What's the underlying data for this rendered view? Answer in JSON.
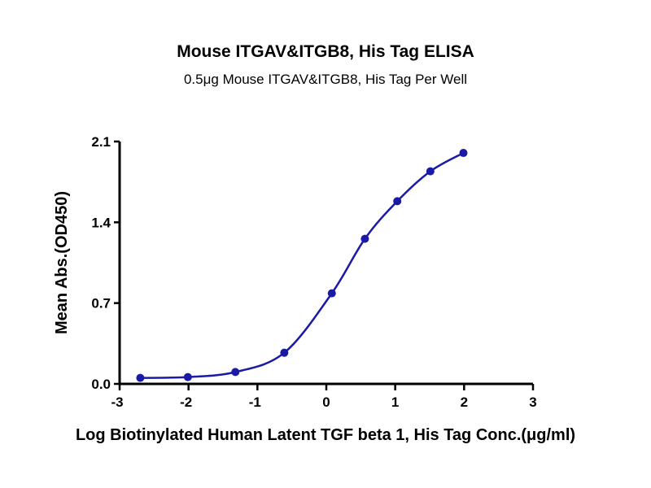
{
  "chart_data": {
    "type": "scatter",
    "title": "Mouse ITGAV&ITGB8, His Tag ELISA",
    "subtitle": "0.5μg Mouse ITGAV&ITGB8, His Tag Per Well",
    "xlabel": "Log Biotinylated Human Latent TGF beta 1, His Tag Conc.(μg/ml)",
    "ylabel": "Mean Abs.(OD450)",
    "xlim": [
      -3,
      3
    ],
    "ylim": [
      0,
      2.1
    ],
    "xticks": [
      "-3",
      "-2",
      "-1",
      "0",
      "1",
      "2",
      "3"
    ],
    "yticks": [
      "0.0",
      "0.7",
      "1.4",
      "2.1"
    ],
    "grid": false,
    "color": "#1a1aa6",
    "series": [
      {
        "name": "ELISA",
        "x": [
          -2.7,
          -2.01,
          -1.32,
          -0.61,
          0.08,
          0.56,
          1.03,
          1.51,
          1.99
        ],
        "y": [
          0.052,
          0.059,
          0.103,
          0.27,
          0.785,
          1.257,
          1.583,
          1.842,
          2.001
        ]
      }
    ]
  }
}
